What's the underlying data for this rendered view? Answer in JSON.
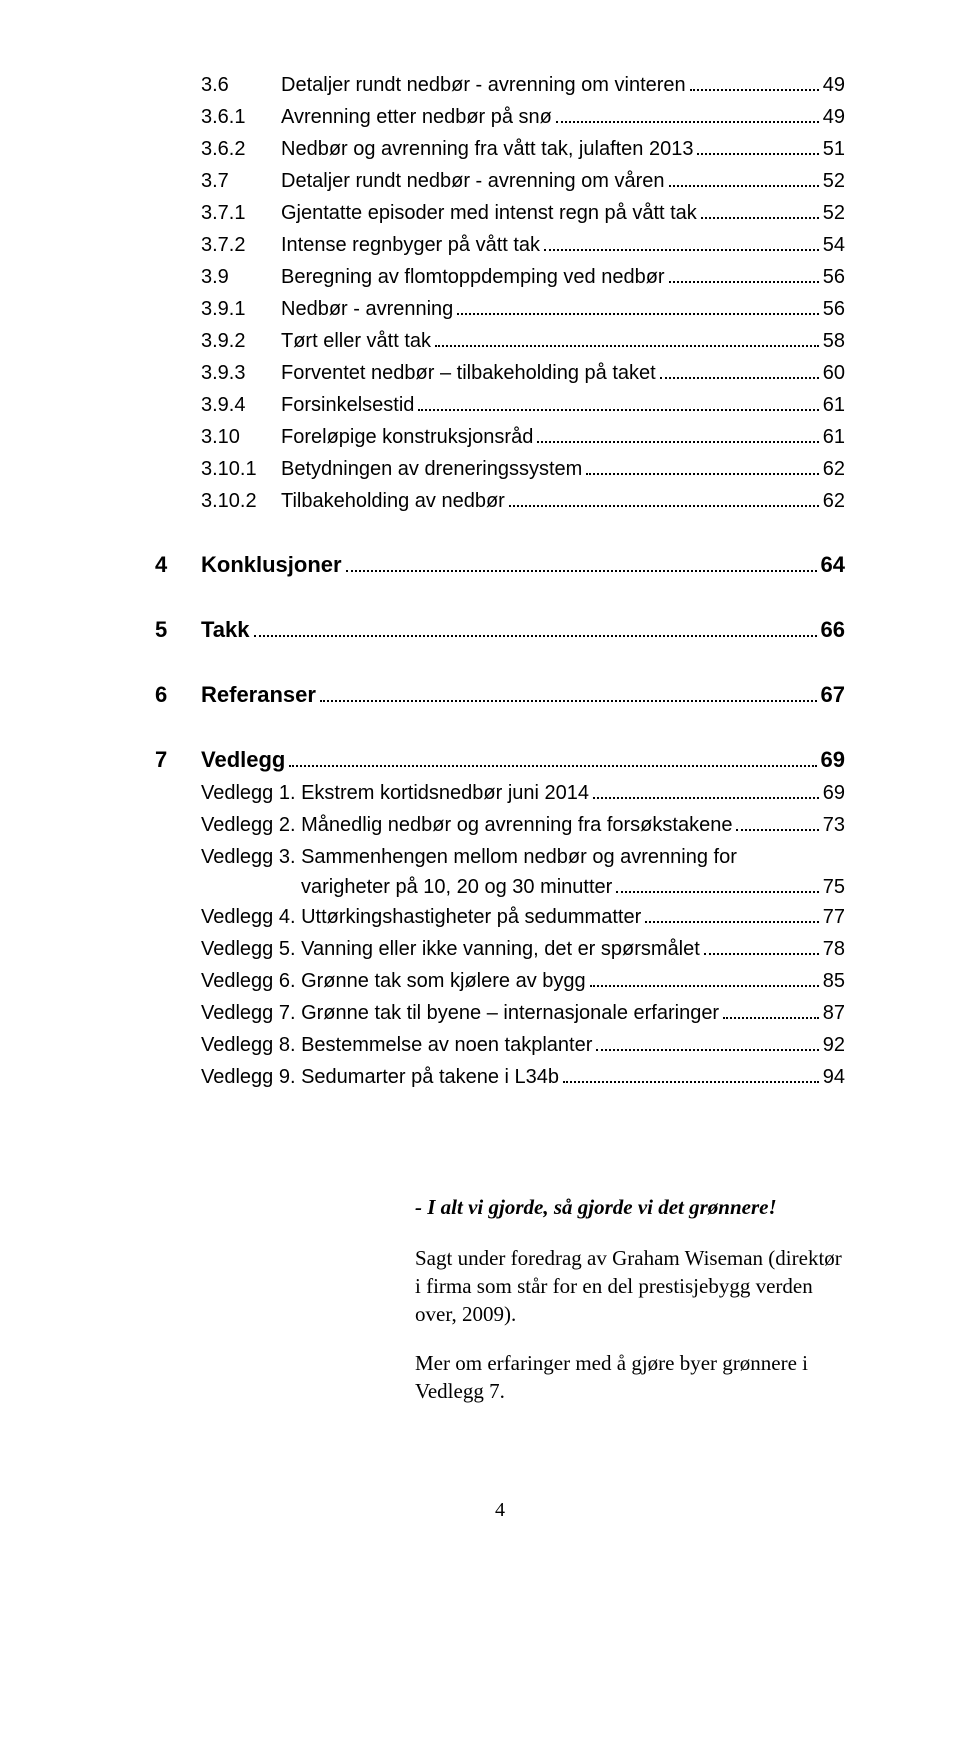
{
  "toc": {
    "sub_entries_top": [
      {
        "num": "3.6",
        "title": "Detaljer rundt nedbør - avrenning om vinteren",
        "page": "49"
      },
      {
        "num": "3.6.1",
        "title": "Avrenning etter nedbør på snø",
        "page": "49"
      },
      {
        "num": "3.6.2",
        "title": "Nedbør og avrenning fra vått tak, julaften 2013",
        "page": "51"
      },
      {
        "num": "3.7",
        "title": "Detaljer rundt nedbør - avrenning om våren",
        "page": "52"
      },
      {
        "num": "3.7.1",
        "title": "Gjentatte episoder med intenst regn på vått tak",
        "page": "52"
      },
      {
        "num": "3.7.2",
        "title": "Intense regnbyger på vått tak",
        "page": "54"
      },
      {
        "num": "3.9",
        "title": "Beregning av flomtoppdemping ved nedbør",
        "page": "56"
      },
      {
        "num": "3.9.1",
        "title": "Nedbør - avrenning",
        "page": "56"
      },
      {
        "num": "3.9.2",
        "title": "Tørt eller vått tak",
        "page": "58"
      },
      {
        "num": "3.9.3",
        "title": "Forventet nedbør – tilbakeholding på taket",
        "page": "60"
      },
      {
        "num": "3.9.4",
        "title": "Forsinkelsestid",
        "page": "61"
      },
      {
        "num": "3.10",
        "title": "Foreløpige konstruksjonsråd",
        "page": "61"
      },
      {
        "num": "3.10.1",
        "title": "Betydningen av dreneringssystem",
        "page": "62"
      },
      {
        "num": "3.10.2",
        "title": "Tilbakeholding av nedbør",
        "page": "62"
      }
    ],
    "main_sections": [
      {
        "num": "4",
        "title": "Konklusjoner",
        "page": "64"
      },
      {
        "num": "5",
        "title": "Takk",
        "page": "66"
      },
      {
        "num": "6",
        "title": "Referanser",
        "page": "67"
      },
      {
        "num": "7",
        "title": "Vedlegg",
        "page": "69"
      }
    ],
    "vedlegg": [
      {
        "label": "Vedlegg 1. Ekstrem kortidsnedbør juni 2014",
        "page": "69"
      },
      {
        "label": "Vedlegg 2. Månedlig nedbør og avrenning fra forsøkstakene",
        "page": "73"
      },
      {
        "label_line1": "Vedlegg 3. Sammenhengen mellom nedbør og avrenning for",
        "label_line2": "varigheter på 10, 20 og 30 minutter",
        "page": "75",
        "wrap": true
      },
      {
        "label": "Vedlegg 4. Uttørkingshastigheter på sedummatter",
        "page": "77"
      },
      {
        "label": "Vedlegg 5. Vanning eller ikke vanning, det er spørsmålet",
        "page": "78"
      },
      {
        "label": "Vedlegg 6. Grønne tak som kjølere av bygg",
        "page": "85"
      },
      {
        "label": "Vedlegg 7. Grønne tak til byene – internasjonale erfaringer",
        "page": "87"
      },
      {
        "label": "Vedlegg 8. Bestemmelse av noen takplanter",
        "page": "92"
      },
      {
        "label": "Vedlegg 9. Sedumarter på takene i L34b",
        "page": "94"
      }
    ]
  },
  "quote": {
    "line": "- I alt vi gjorde, så gjorde vi det grønnere!",
    "para1": "Sagt under foredrag av Graham Wiseman (direktør i firma som står for en del prestisjebygg verden over, 2009).",
    "para2": "Mer om erfaringer med å gjøre byer grønnere i Vedlegg 7."
  },
  "page_number": "4"
}
